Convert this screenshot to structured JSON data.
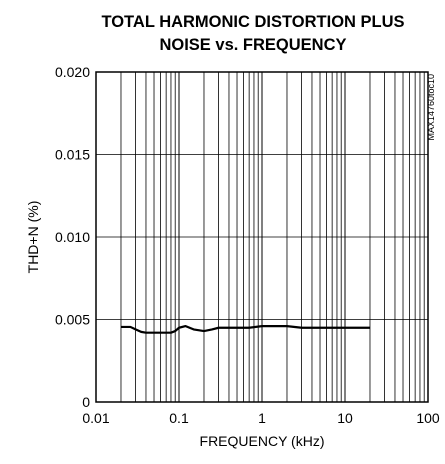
{
  "chart_data": {
    "type": "line",
    "title_lines": [
      "TOTAL HARMONIC DISTORTION PLUS",
      "NOISE vs. FREQUENCY"
    ],
    "xlabel": "FREQUENCY (kHz)",
    "ylabel": "THD+N (%)",
    "x_scale": "log",
    "xlim": [
      0.01,
      100
    ],
    "ylim": [
      0,
      0.02
    ],
    "x_ticks": [
      {
        "value": 0.01,
        "label": "0.01"
      },
      {
        "value": 0.1,
        "label": "0.1"
      },
      {
        "value": 1,
        "label": "1"
      },
      {
        "value": 10,
        "label": "10"
      },
      {
        "value": 100,
        "label": "100"
      }
    ],
    "y_ticks": [
      {
        "value": 0,
        "label": "0"
      },
      {
        "value": 0.005,
        "label": "0.005"
      },
      {
        "value": 0.01,
        "label": "0.010"
      },
      {
        "value": 0.015,
        "label": "0.015"
      },
      {
        "value": 0.02,
        "label": "0.020"
      }
    ],
    "grid": true,
    "annotation": "MAX14760toc10",
    "series": [
      {
        "x": [
          0.02,
          0.026,
          0.03,
          0.035,
          0.04,
          0.05,
          0.06,
          0.07,
          0.08,
          0.09,
          0.1,
          0.12,
          0.15,
          0.2,
          0.25,
          0.3,
          0.4,
          0.5,
          0.7,
          1,
          1.5,
          2,
          3,
          5,
          7,
          10,
          15,
          20
        ],
        "y": [
          0.00455,
          0.00455,
          0.0044,
          0.00425,
          0.0042,
          0.0042,
          0.0042,
          0.0042,
          0.0042,
          0.0043,
          0.0045,
          0.0046,
          0.0044,
          0.0043,
          0.0044,
          0.0045,
          0.0045,
          0.0045,
          0.0045,
          0.0046,
          0.0046,
          0.0046,
          0.0045,
          0.0045,
          0.0045,
          0.0045,
          0.0045,
          0.0045
        ]
      }
    ]
  }
}
